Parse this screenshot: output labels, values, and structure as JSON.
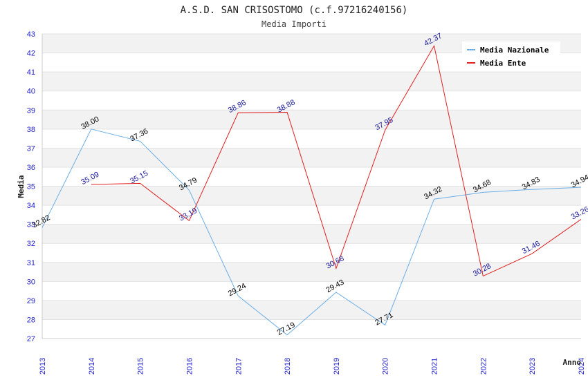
{
  "chart_data": {
    "type": "line",
    "title": "A.S.D. SAN CRISOSTOMO (c.f.97216240156)",
    "subtitle": "Media Importi",
    "xlabel": "Anno",
    "ylabel": "Media",
    "ylim": [
      27,
      43
    ],
    "yticks": [
      "27",
      "28",
      "29",
      "30",
      "31",
      "32",
      "33",
      "34",
      "35",
      "36",
      "37",
      "38",
      "39",
      "40",
      "41",
      "42",
      "43"
    ],
    "categories": [
      "2013",
      "2014",
      "2015",
      "2016",
      "2017",
      "2018",
      "2019",
      "2020",
      "2021",
      "2022",
      "2023",
      "2024"
    ],
    "legend_position": "top-right",
    "series": [
      {
        "name": "Media Nazionale",
        "color": "#6aaee6",
        "label_color": "#000000",
        "values": [
          32.82,
          38.0,
          37.36,
          34.79,
          29.24,
          27.19,
          29.43,
          27.71,
          34.32,
          34.68,
          34.83,
          34.94
        ],
        "labels": [
          "32.82",
          "38.00",
          "37.36",
          "34.79",
          "29.24",
          "27.19",
          "29.43",
          "27.71",
          "34.32",
          "34.68",
          "34.83",
          "34.94"
        ]
      },
      {
        "name": "Media Ente",
        "color": "#e02020",
        "label_color": "#1a1a99",
        "values": [
          null,
          35.09,
          35.15,
          33.19,
          38.86,
          38.88,
          30.68,
          37.95,
          42.37,
          30.28,
          31.46,
          33.26
        ],
        "labels": [
          null,
          "35.09",
          "35.15",
          "33.19",
          "38.86",
          "38.88",
          "30.68",
          "37.95",
          "42.37",
          "30.28",
          "31.46",
          "33.26"
        ]
      }
    ]
  }
}
